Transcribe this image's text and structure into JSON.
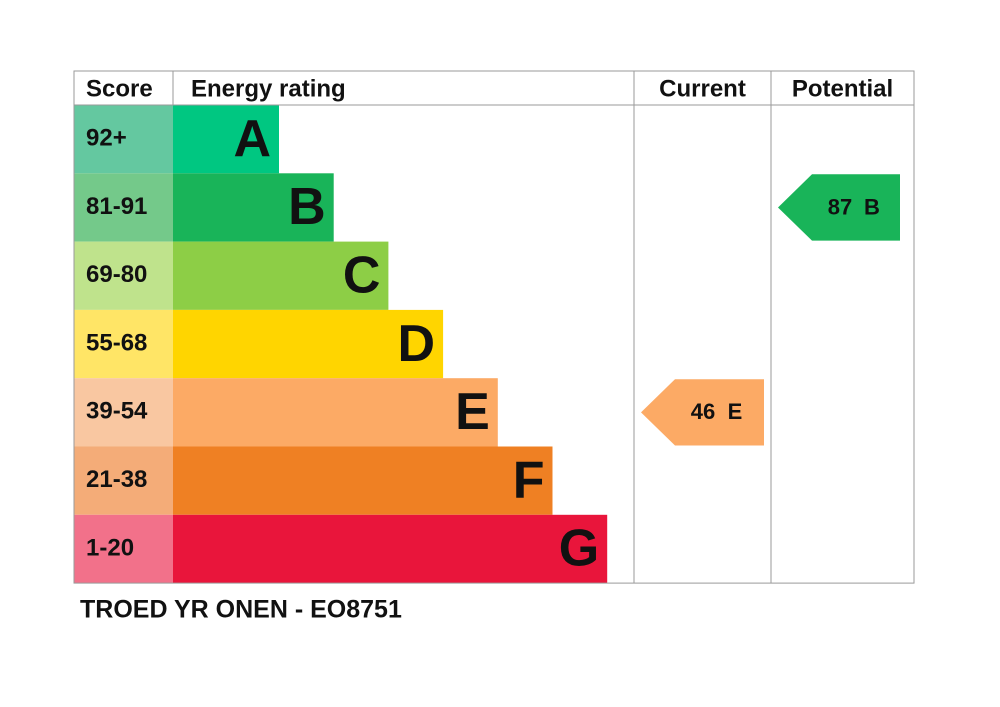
{
  "header": {
    "score": "Score",
    "rating": "Energy rating",
    "current": "Current",
    "potential": "Potential"
  },
  "bands": [
    {
      "score": "92+",
      "letter": "A",
      "color": "#00c781",
      "score_color": "#64c8a0"
    },
    {
      "score": "81-91",
      "letter": "B",
      "color": "#19b459",
      "score_color": "#74c98a"
    },
    {
      "score": "69-80",
      "letter": "C",
      "color": "#8dce46",
      "score_color": "#bfe38c"
    },
    {
      "score": "55-68",
      "letter": "D",
      "color": "#ffd500",
      "score_color": "#ffe566"
    },
    {
      "score": "39-54",
      "letter": "E",
      "color": "#fcaa65",
      "score_color": "#f9c7a1"
    },
    {
      "score": "21-38",
      "letter": "F",
      "color": "#ef8023",
      "score_color": "#f4ac78"
    },
    {
      "score": "1-20",
      "letter": "G",
      "color": "#e9153b",
      "score_color": "#f2718a"
    }
  ],
  "current": {
    "value": 46,
    "letter": "E"
  },
  "potential": {
    "value": 87,
    "letter": "B"
  },
  "footer": "TROED YR ONEN - EO8751"
}
